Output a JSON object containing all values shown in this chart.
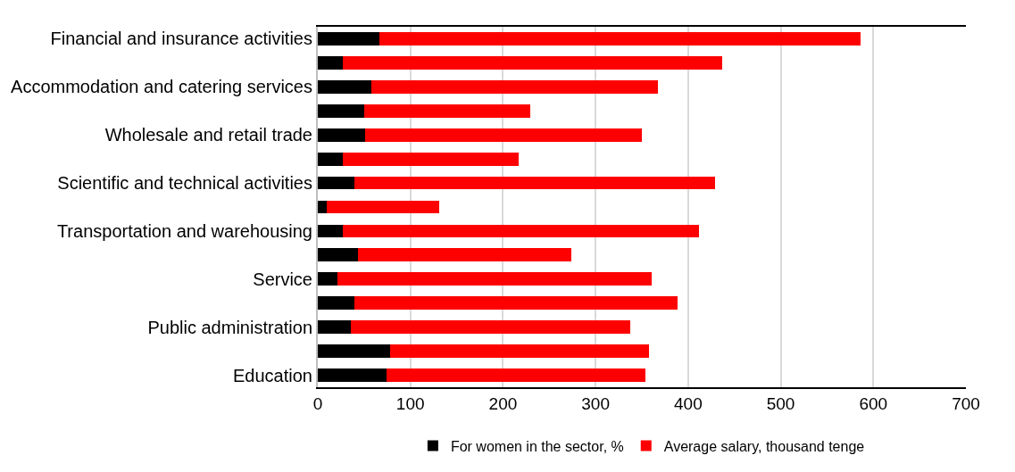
{
  "chart_data": {
    "type": "bar",
    "orientation": "horizontal",
    "stacked": true,
    "categories": [
      "Financial and insurance activities",
      null,
      "Accommodation and catering services",
      null,
      "Wholesale and retail trade",
      null,
      "Scientific and technical activities",
      null,
      "Transportation and warehousing",
      null,
      "Service",
      null,
      "Public administration",
      null,
      "Education"
    ],
    "series": [
      {
        "name": "For women in the sector, %",
        "color": "#000000",
        "values": [
          67,
          27,
          58,
          50,
          51,
          27,
          40,
          10,
          27,
          43,
          21,
          40,
          36,
          78,
          74
        ]
      },
      {
        "name": "Average salary, thousand tenge",
        "color": "#ff0000",
        "values": [
          519,
          410,
          309,
          179,
          299,
          190,
          389,
          121,
          385,
          231,
          340,
          349,
          301,
          280,
          280
        ]
      }
    ],
    "xlim": [
      0,
      700
    ],
    "xticks": [
      0,
      100,
      200,
      300,
      400,
      500,
      600,
      700
    ],
    "grid": "x",
    "legend": "bottom"
  }
}
